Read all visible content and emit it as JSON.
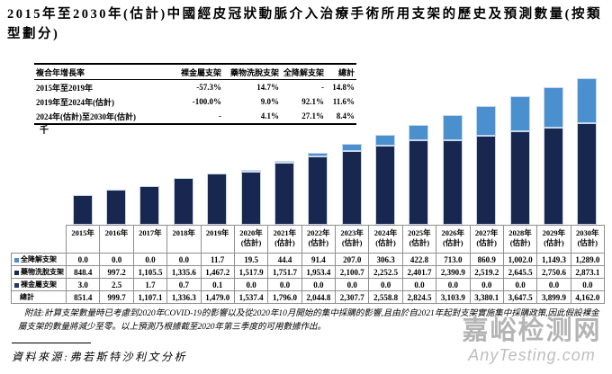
{
  "title": "2015年至2030年(估計)中國經皮冠狀動脈介入治療手術所用支架的歷史及預測數量(按類型劃分)",
  "cagr_table": {
    "headers": [
      "複合年增長率",
      "裸金屬支架",
      "藥物洗脫支架",
      "全降解支架",
      "總計"
    ],
    "rows": [
      {
        "period": "2015年至2019年",
        "values": [
          "-57.3%",
          "14.7%",
          "-",
          "14.8%"
        ]
      },
      {
        "period": "2019年至2024年(估計)",
        "values": [
          "-100.0%",
          "9.0%",
          "92.1%",
          "11.6%"
        ]
      },
      {
        "period": "2024年(估計)至2030年(估計)",
        "values": [
          "-",
          "4.1%",
          "27.1%",
          "8.4%"
        ]
      }
    ]
  },
  "chart_data": {
    "type": "bar",
    "subtype": "stacked",
    "unit_label": "千",
    "title": "2015年至2030年(估計)中國經皮冠狀動脈介入治療手術所用支架的歷史及預測數量(按類型劃分)",
    "categories": [
      "2015年",
      "2016年",
      "2017年",
      "2018年",
      "2019年",
      "2020年\n(估計)",
      "2021年\n(估計)",
      "2022年\n(估計)",
      "2023年\n(估計)",
      "2024年\n(估計)",
      "2025年\n(估計)",
      "2026年\n(估計)",
      "2027年\n(估計)",
      "2028年\n(估計)",
      "2029年\n(估計)",
      "2030年\n(估計)"
    ],
    "series": [
      {
        "name": "全降解支架",
        "color": "#4a90ce",
        "values": [
          0.0,
          0.0,
          0.0,
          0.0,
          11.7,
          19.5,
          44.4,
          91.4,
          207.0,
          306.3,
          422.8,
          713.0,
          860.9,
          1002.0,
          1149.3,
          1289.0
        ]
      },
      {
        "name": "藥物洗脫支架",
        "color": "#172750",
        "values": [
          848.4,
          997.2,
          1105.5,
          1335.6,
          1467.2,
          1517.9,
          1751.7,
          1953.4,
          2100.7,
          2252.5,
          2401.7,
          2390.9,
          2519.2,
          2645.5,
          2750.6,
          2873.1
        ]
      },
      {
        "name": "裸金屬支架",
        "color": "#1f3864",
        "values": [
          3.0,
          2.5,
          1.7,
          0.7,
          0.1,
          0.0,
          0.0,
          0.0,
          0.0,
          0.0,
          0.0,
          0.0,
          0.0,
          0.0,
          0.0,
          0.0
        ]
      }
    ],
    "totals": [
      851.4,
      999.7,
      1107.1,
      1336.3,
      1479.0,
      1537.4,
      1796.0,
      2044.8,
      2307.7,
      2558.8,
      2824.5,
      3103.9,
      3380.1,
      3647.5,
      3899.9,
      4162.0
    ],
    "total_label": "總計",
    "ylim": [
      0,
      4162
    ],
    "legend_position": "table-left",
    "grid": false
  },
  "note": "附註:計算支架數量時已考慮到2020年COVID-19的影響以及從2020年10月開始的集中採購的影響,且由於自2021年起對支架實施集中採購政策,因此假設裸金屬支架的數量將減少至零。以上預測乃根據截至2020年第三季度的可用數據作出。",
  "source": "資料來源:弗若斯特沙利文分析",
  "watermark": {
    "site_name": "嘉峪检测网",
    "domain": "AnyTesting.com"
  }
}
